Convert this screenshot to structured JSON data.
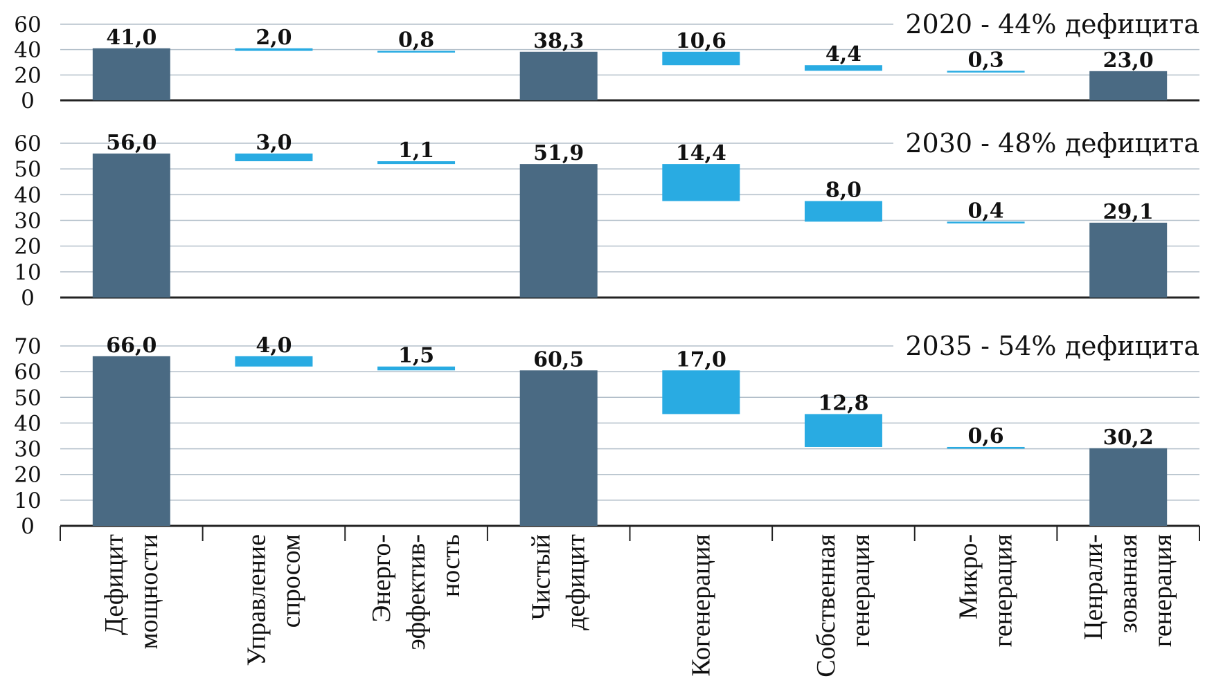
{
  "colors": {
    "total": "#4a6a83",
    "step": "#29abe2",
    "grid": "#b3bfca",
    "axis": "#222222"
  },
  "category_labels": [
    [
      "Дефицит",
      "мощности"
    ],
    [
      "Управление",
      "спросом"
    ],
    [
      "Энерго-",
      "эффектив-",
      "ность"
    ],
    [
      "Чистый",
      "дефицит"
    ],
    [
      "Когенерация"
    ],
    [
      "Собственная",
      "генерация"
    ],
    [
      "Микро-",
      "генерация"
    ],
    [
      "Ценрали-",
      "зованная",
      "генерация"
    ]
  ],
  "chart_data": [
    {
      "type": "bar",
      "title": "2020 - 44% дефицита",
      "categories": [
        "Дефицит мощности",
        "Управление спросом",
        "Энергоэффективность",
        "Чистый дефицит",
        "Когенерация",
        "Собственная генерация",
        "Микрогенерация",
        "Ценрализованная генерация"
      ],
      "values": [
        41.0,
        2.0,
        0.8,
        38.3,
        10.6,
        4.4,
        0.3,
        23.0
      ],
      "labels": [
        "41,0",
        "2,0",
        "0,8",
        "38,3",
        "10,6",
        "4,4",
        "0,3",
        "23,0"
      ],
      "kinds": [
        "total",
        "step",
        "step",
        "total",
        "step",
        "step",
        "step",
        "total"
      ],
      "ylim": [
        0,
        60
      ],
      "yticks": [
        0,
        20,
        40,
        60
      ],
      "xlabel": "",
      "ylabel": ""
    },
    {
      "type": "bar",
      "title": "2030 - 48% дефицита",
      "categories": [
        "Дефицит мощности",
        "Управление спросом",
        "Энергоэффективность",
        "Чистый дефицит",
        "Когенерация",
        "Собственная генерация",
        "Микрогенерация",
        "Ценрализованная генерация"
      ],
      "values": [
        56.0,
        3.0,
        1.1,
        51.9,
        14.4,
        8.0,
        0.4,
        29.1
      ],
      "labels": [
        "56,0",
        "3,0",
        "1,1",
        "51,9",
        "14,4",
        "8,0",
        "0,4",
        "29,1"
      ],
      "kinds": [
        "total",
        "step",
        "step",
        "total",
        "step",
        "step",
        "step",
        "total"
      ],
      "ylim": [
        0,
        60
      ],
      "yticks": [
        0,
        10,
        20,
        30,
        40,
        50,
        60
      ],
      "xlabel": "",
      "ylabel": ""
    },
    {
      "type": "bar",
      "title": "2035 - 54% дефицита",
      "categories": [
        "Дефицит мощности",
        "Управление спросом",
        "Энергоэффективность",
        "Чистый дефицит",
        "Когенерация",
        "Собственная генерация",
        "Микрогенерация",
        "Ценрализованная генерация"
      ],
      "values": [
        66.0,
        4.0,
        1.5,
        60.5,
        17.0,
        12.8,
        0.6,
        30.2
      ],
      "labels": [
        "66,0",
        "4,0",
        "1,5",
        "60,5",
        "17,0",
        "12,8",
        "0,6",
        "30,2"
      ],
      "kinds": [
        "total",
        "step",
        "step",
        "total",
        "step",
        "step",
        "step",
        "total"
      ],
      "ylim": [
        0,
        70
      ],
      "yticks": [
        0,
        10,
        20,
        30,
        40,
        50,
        60,
        70
      ],
      "xlabel": "",
      "ylabel": ""
    }
  ]
}
